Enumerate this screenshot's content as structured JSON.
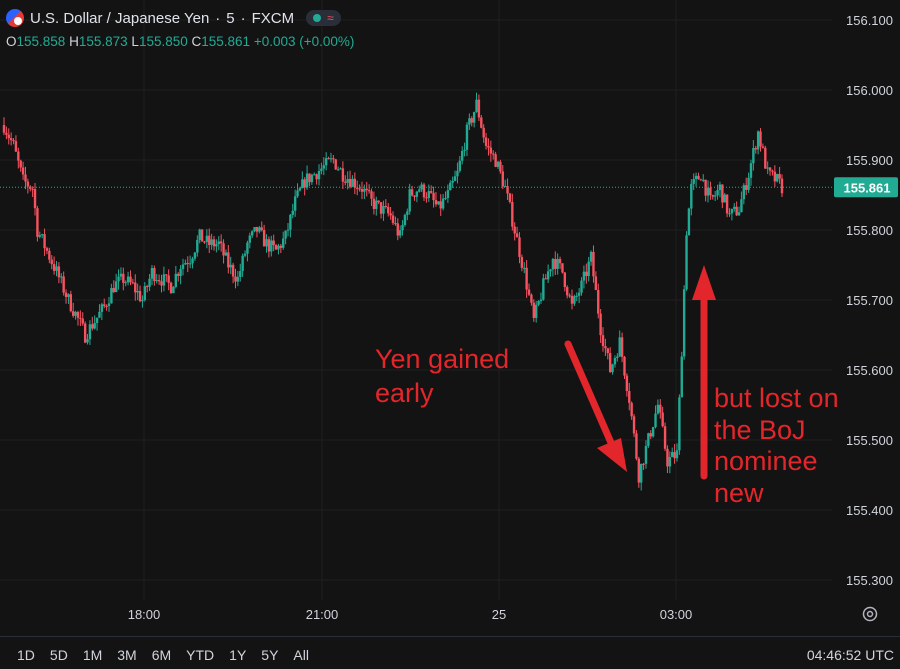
{
  "header": {
    "symbol_title": "U.S. Dollar / Japanese Yen",
    "interval": "5",
    "exchange": "FXCM",
    "separator": "·",
    "icons": [
      "flag-icon",
      "market-open-dot-icon",
      "wave-icon"
    ]
  },
  "ohlc": {
    "open_label": "O",
    "open": "155.858",
    "high_label": "H",
    "high": "155.873",
    "low_label": "L",
    "low": "155.850",
    "close_label": "C",
    "close": "155.861",
    "change": "+0.003 (+0.00%)"
  },
  "last_price_label": "155.861",
  "annotations": {
    "gained_line1": "Yen gained",
    "gained_line2": "early",
    "lost_line1": "but lost on",
    "lost_line2": "the BoJ",
    "lost_line3": "nominee",
    "lost_line4": "new"
  },
  "time_ranges": [
    "1D",
    "5D",
    "1M",
    "3M",
    "6M",
    "YTD",
    "1Y",
    "5Y",
    "All"
  ],
  "clock": "04:46:52 UTC",
  "colors": {
    "background": "#131313",
    "up": "#22ab94",
    "down": "#f7525f",
    "annotation": "#e3262b",
    "grid": "#1f1f1f",
    "text": "#d1d4dc"
  },
  "chart_data": {
    "type": "candlestick",
    "y_ticks": [
      "156.100",
      "156.000",
      "155.900",
      "155.800",
      "155.700",
      "155.600",
      "155.500",
      "155.400",
      "155.300"
    ],
    "x_ticks": [
      "18:00",
      "21:00",
      "25",
      "03:00"
    ],
    "ylim": [
      155.27,
      156.135
    ],
    "last_price": 155.861,
    "grid": true,
    "anchors": [
      [
        0,
        155.95
      ],
      [
        4,
        155.92
      ],
      [
        8,
        155.87
      ],
      [
        12,
        155.86
      ],
      [
        14,
        155.8
      ],
      [
        18,
        155.77
      ],
      [
        22,
        155.74
      ],
      [
        27,
        155.7
      ],
      [
        30,
        155.68
      ],
      [
        34,
        155.65
      ],
      [
        38,
        155.67
      ],
      [
        42,
        155.69
      ],
      [
        46,
        155.72
      ],
      [
        50,
        155.73
      ],
      [
        54,
        155.72
      ],
      [
        58,
        155.7
      ],
      [
        62,
        155.74
      ],
      [
        66,
        155.73
      ],
      [
        70,
        155.72
      ],
      [
        74,
        155.75
      ],
      [
        78,
        155.76
      ],
      [
        82,
        155.79
      ],
      [
        86,
        155.78
      ],
      [
        90,
        155.78
      ],
      [
        94,
        155.75
      ],
      [
        98,
        155.73
      ],
      [
        102,
        155.78
      ],
      [
        106,
        155.8
      ],
      [
        110,
        155.78
      ],
      [
        114,
        155.77
      ],
      [
        118,
        155.79
      ],
      [
        122,
        155.84
      ],
      [
        126,
        155.87
      ],
      [
        130,
        155.88
      ],
      [
        134,
        155.89
      ],
      [
        138,
        155.9
      ],
      [
        142,
        155.88
      ],
      [
        146,
        155.87
      ],
      [
        150,
        155.86
      ],
      [
        154,
        155.84
      ],
      [
        158,
        155.83
      ],
      [
        162,
        155.82
      ],
      [
        166,
        155.79
      ],
      [
        170,
        155.85
      ],
      [
        174,
        155.86
      ],
      [
        178,
        155.85
      ],
      [
        182,
        155.83
      ],
      [
        186,
        155.85
      ],
      [
        190,
        155.88
      ],
      [
        194,
        155.94
      ],
      [
        198,
        155.98
      ],
      [
        202,
        155.92
      ],
      [
        206,
        155.9
      ],
      [
        210,
        155.86
      ],
      [
        214,
        155.8
      ],
      [
        218,
        155.74
      ],
      [
        222,
        155.67
      ],
      [
        226,
        155.72
      ],
      [
        230,
        155.76
      ],
      [
        234,
        155.74
      ],
      [
        238,
        155.69
      ],
      [
        242,
        155.72
      ],
      [
        246,
        155.76
      ],
      [
        250,
        155.66
      ],
      [
        254,
        155.6
      ],
      [
        258,
        155.64
      ],
      [
        262,
        155.56
      ],
      [
        266,
        155.45
      ],
      [
        270,
        155.5
      ],
      [
        274,
        155.55
      ],
      [
        278,
        155.47
      ],
      [
        282,
        155.48
      ],
      [
        284,
        155.63
      ],
      [
        286,
        155.8
      ],
      [
        288,
        155.86
      ],
      [
        292,
        155.88
      ],
      [
        296,
        155.84
      ],
      [
        300,
        155.86
      ],
      [
        304,
        155.82
      ],
      [
        308,
        155.83
      ],
      [
        312,
        155.88
      ],
      [
        316,
        155.94
      ],
      [
        320,
        155.88
      ],
      [
        324,
        155.87
      ],
      [
        326,
        155.861
      ]
    ]
  }
}
